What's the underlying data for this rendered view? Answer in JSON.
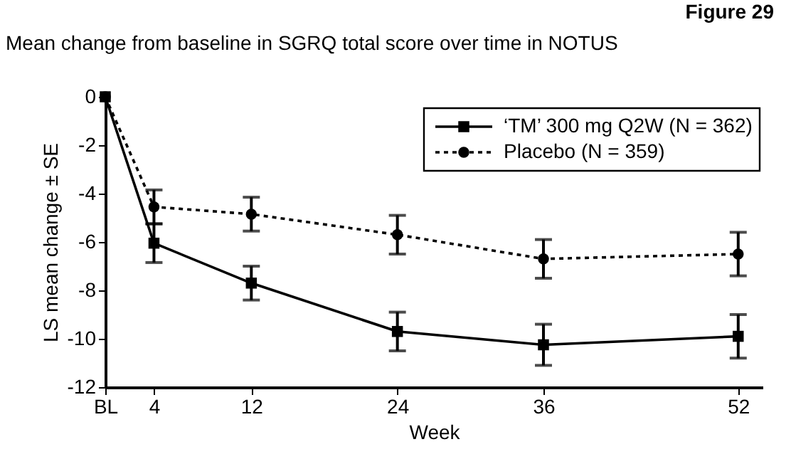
{
  "chart_data": {
    "type": "line",
    "title": "Mean change from baseline in SGRQ total score over time in NOTUS",
    "annotations": [
      "Figure 29"
    ],
    "x": [
      0,
      4,
      12,
      24,
      36,
      52
    ],
    "xlim": [
      0,
      54
    ],
    "xticks": [
      {
        "value": 0,
        "label": "BL"
      },
      4,
      12,
      24,
      36,
      52
    ],
    "ylim": [
      -12,
      0
    ],
    "yticks": [
      -12,
      -10,
      -8,
      -6,
      -4,
      -2,
      0
    ],
    "xlabel": "Week",
    "ylabel": "LS mean change ± SE",
    "series": [
      {
        "name": "‘TM’ 300 mg Q2W (N = 362)",
        "color": "#000000",
        "marker": "square",
        "line_style": "solid",
        "values": [
          0,
          -6.05,
          -7.7,
          -9.7,
          -10.25,
          -9.9
        ],
        "errors": [
          null,
          0.8,
          0.7,
          0.8,
          0.85,
          0.9
        ]
      },
      {
        "name": "Placebo (N = 359)",
        "color": "#000000",
        "marker": "circle",
        "line_style": "dotted",
        "values": [
          0,
          -4.55,
          -4.85,
          -5.7,
          -6.7,
          -6.5
        ],
        "errors": [
          null,
          0.7,
          0.7,
          0.8,
          0.8,
          0.9
        ]
      }
    ],
    "legend": "top right",
    "grid": false
  }
}
